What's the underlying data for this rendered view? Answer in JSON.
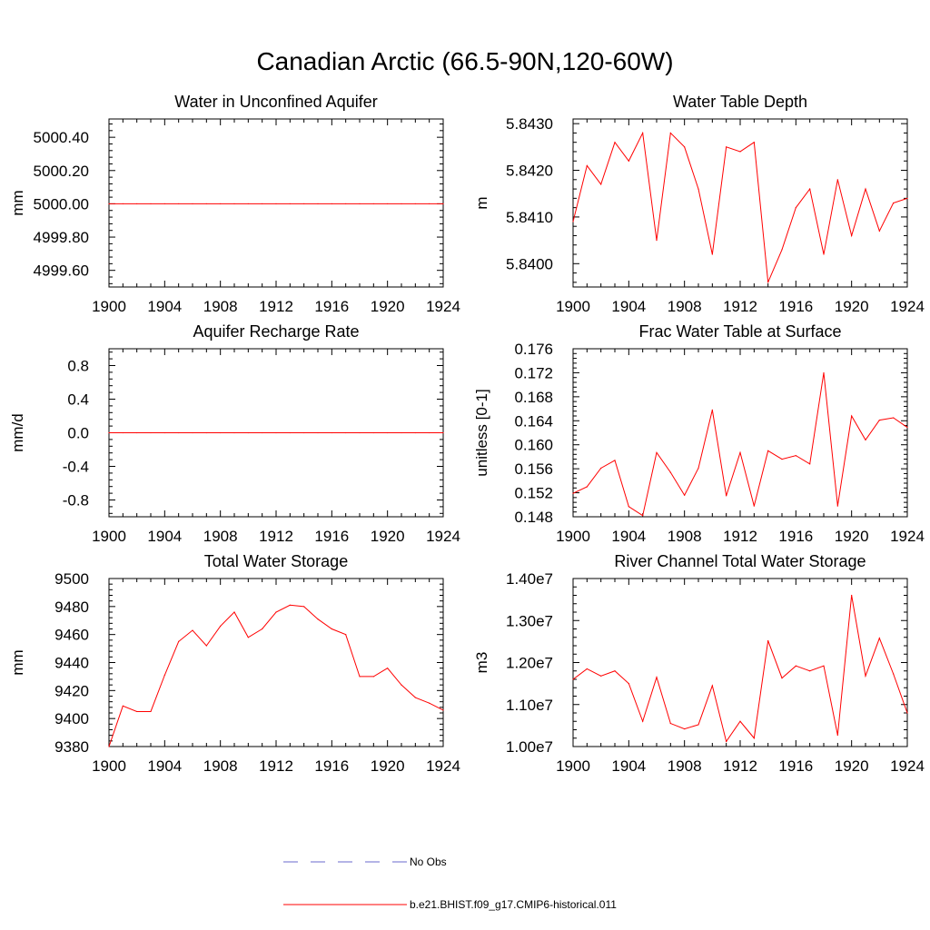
{
  "title": "Canadian Arctic (66.5-90N,120-60W)",
  "legend": {
    "items": [
      {
        "label": "No Obs",
        "color": "#6a6acd",
        "style": "dashed"
      },
      {
        "label": "b.e21.BHIST.f09_g17.CMIP6-historical.011",
        "color": "#ff0000",
        "style": "solid"
      }
    ]
  },
  "chart_data": [
    {
      "type": "line",
      "title": "Water in Unconfined Aquifer",
      "ylabel": "mm",
      "xlim": [
        1900,
        1924
      ],
      "xticks": [
        1900,
        1904,
        1908,
        1912,
        1916,
        1920,
        1924
      ],
      "xtick_labels": [
        "1900",
        "1904",
        "1908",
        "1912",
        "1916",
        "1920",
        "1924"
      ],
      "ylim": [
        4999.5,
        5000.51
      ],
      "yticks": [
        4999.6,
        4999.8,
        5000.0,
        5000.2,
        5000.4
      ],
      "ytick_labels": [
        "4999.60",
        "4999.80",
        "5000.00",
        "5000.20",
        "5000.40"
      ],
      "ydecimals": 2,
      "series": [
        {
          "name": "b.e21.BHIST.f09_g17.CMIP6-historical.011",
          "color": "#ff0000",
          "x": [
            1900,
            1901,
            1902,
            1903,
            1904,
            1905,
            1906,
            1907,
            1908,
            1909,
            1910,
            1911,
            1912,
            1913,
            1914,
            1915,
            1916,
            1917,
            1918,
            1919,
            1920,
            1921,
            1922,
            1923,
            1924
          ],
          "values": [
            5000,
            5000,
            5000,
            5000,
            5000,
            5000,
            5000,
            5000,
            5000,
            5000,
            5000,
            5000,
            5000,
            5000,
            5000,
            5000,
            5000,
            5000,
            5000,
            5000,
            5000,
            5000,
            5000,
            5000,
            5000
          ]
        }
      ]
    },
    {
      "type": "line",
      "title": "Water Table Depth",
      "ylabel": "m",
      "xlim": [
        1900,
        1924
      ],
      "xticks": [
        1900,
        1904,
        1908,
        1912,
        1916,
        1920,
        1924
      ],
      "xtick_labels": [
        "1900",
        "1904",
        "1908",
        "1912",
        "1916",
        "1920",
        "1924"
      ],
      "ylim": [
        5.8395,
        5.8431
      ],
      "yticks": [
        5.84,
        5.841,
        5.842,
        5.843
      ],
      "ytick_labels": [
        "5.8400",
        "5.8410",
        "5.8420",
        "5.8430"
      ],
      "ydecimals": 4,
      "series": [
        {
          "name": "b.e21.BHIST.f09_g17.CMIP6-historical.011",
          "color": "#ff0000",
          "x": [
            1900,
            1901,
            1902,
            1903,
            1904,
            1905,
            1906,
            1907,
            1908,
            1909,
            1910,
            1911,
            1912,
            1913,
            1914,
            1915,
            1916,
            1917,
            1918,
            1919,
            1920,
            1921,
            1922,
            1923,
            1924
          ],
          "values": [
            5.8409,
            5.8421,
            5.8417,
            5.8426,
            5.8422,
            5.8428,
            5.8405,
            5.8428,
            5.8425,
            5.8416,
            5.8402,
            5.8425,
            5.8424,
            5.8426,
            5.8396,
            5.8403,
            5.8412,
            5.8416,
            5.8402,
            5.8418,
            5.8406,
            5.8416,
            5.8407,
            5.8413,
            5.8414
          ]
        }
      ]
    },
    {
      "type": "line",
      "title": "Aquifer Recharge Rate",
      "ylabel": "mm/d",
      "xlim": [
        1900,
        1924
      ],
      "xticks": [
        1900,
        1904,
        1908,
        1912,
        1916,
        1920,
        1924
      ],
      "xtick_labels": [
        "1900",
        "1904",
        "1908",
        "1912",
        "1916",
        "1920",
        "1924"
      ],
      "ylim": [
        -1.0,
        1.0
      ],
      "yticks": [
        -0.8,
        -0.4,
        0.0,
        0.4,
        0.8
      ],
      "ytick_labels": [
        "-0.8",
        "-0.4",
        "0.0",
        "0.4",
        "0.8"
      ],
      "ydecimals": 1,
      "series": [
        {
          "name": "b.e21.BHIST.f09_g17.CMIP6-historical.011",
          "color": "#ff0000",
          "x": [
            1900,
            1901,
            1902,
            1903,
            1904,
            1905,
            1906,
            1907,
            1908,
            1909,
            1910,
            1911,
            1912,
            1913,
            1914,
            1915,
            1916,
            1917,
            1918,
            1919,
            1920,
            1921,
            1922,
            1923,
            1924
          ],
          "values": [
            0,
            0,
            0,
            0,
            0,
            0,
            0,
            0,
            0,
            0,
            0,
            0,
            0,
            0,
            0,
            0,
            0,
            0,
            0,
            0,
            0,
            0,
            0,
            0,
            0
          ]
        }
      ]
    },
    {
      "type": "line",
      "title": "Frac Water Table at Surface",
      "ylabel": "unitless [0-1]",
      "xlim": [
        1900,
        1924
      ],
      "xticks": [
        1900,
        1904,
        1908,
        1912,
        1916,
        1920,
        1924
      ],
      "xtick_labels": [
        "1900",
        "1904",
        "1908",
        "1912",
        "1916",
        "1920",
        "1924"
      ],
      "ylim": [
        0.148,
        0.176
      ],
      "yticks": [
        0.148,
        0.152,
        0.156,
        0.16,
        0.164,
        0.168,
        0.172,
        0.176
      ],
      "ytick_labels": [
        "0.148",
        "0.152",
        "0.156",
        "0.160",
        "0.164",
        "0.168",
        "0.172",
        "0.176"
      ],
      "ydecimals": 3,
      "series": [
        {
          "name": "b.e21.BHIST.f09_g17.CMIP6-historical.011",
          "color": "#ff0000",
          "x": [
            1900,
            1901,
            1902,
            1903,
            1904,
            1905,
            1906,
            1907,
            1908,
            1909,
            1910,
            1911,
            1912,
            1913,
            1914,
            1915,
            1916,
            1917,
            1918,
            1919,
            1920,
            1921,
            1922,
            1923,
            1924
          ],
          "values": [
            0.1519,
            0.153,
            0.1561,
            0.1574,
            0.1497,
            0.1482,
            0.1587,
            0.1554,
            0.1516,
            0.1561,
            0.1658,
            0.1515,
            0.1587,
            0.1498,
            0.159,
            0.1576,
            0.1582,
            0.1568,
            0.172,
            0.1498,
            0.1648,
            0.1608,
            0.1641,
            0.1645,
            0.1629
          ]
        }
      ]
    },
    {
      "type": "line",
      "title": "Total Water Storage",
      "ylabel": "mm",
      "xlim": [
        1900,
        1924
      ],
      "xticks": [
        1900,
        1904,
        1908,
        1912,
        1916,
        1920,
        1924
      ],
      "xtick_labels": [
        "1900",
        "1904",
        "1908",
        "1912",
        "1916",
        "1920",
        "1924"
      ],
      "ylim": [
        9380,
        9500
      ],
      "yticks": [
        9380,
        9400,
        9420,
        9440,
        9460,
        9480,
        9500
      ],
      "ytick_labels": [
        "9380",
        "9400",
        "9420",
        "9440",
        "9460",
        "9480",
        "9500"
      ],
      "ydecimals": 0,
      "series": [
        {
          "name": "b.e21.BHIST.f09_g17.CMIP6-historical.011",
          "color": "#ff0000",
          "x": [
            1900,
            1901,
            1902,
            1903,
            1904,
            1905,
            1906,
            1907,
            1908,
            1909,
            1910,
            1911,
            1912,
            1913,
            1914,
            1915,
            1916,
            1917,
            1918,
            1919,
            1920,
            1921,
            1922,
            1923,
            1924
          ],
          "values": [
            9380,
            9409,
            9405,
            9405,
            9431,
            9455,
            9463,
            9452,
            9466,
            9476,
            9458,
            9464,
            9476,
            9481,
            9480,
            9471,
            9464,
            9460,
            9430,
            9430,
            9436,
            9424,
            9415,
            9411,
            9406
          ]
        }
      ]
    },
    {
      "type": "line",
      "title": "River Channel Total Water Storage",
      "ylabel": "m3",
      "xlim": [
        1900,
        1924
      ],
      "xticks": [
        1900,
        1904,
        1908,
        1912,
        1916,
        1920,
        1924
      ],
      "xtick_labels": [
        "1900",
        "1904",
        "1908",
        "1912",
        "1916",
        "1920",
        "1924"
      ],
      "ylim": [
        10000000,
        14000000
      ],
      "yticks": [
        10000000,
        11000000,
        12000000,
        13000000,
        14000000
      ],
      "ytick_labels": [
        "1.00e7",
        "1.10e7",
        "1.20e7",
        "1.30e7",
        "1.40e7"
      ],
      "ydecimals": 0,
      "series": [
        {
          "name": "b.e21.BHIST.f09_g17.CMIP6-historical.011",
          "color": "#ff0000",
          "x": [
            1900,
            1901,
            1902,
            1903,
            1904,
            1905,
            1906,
            1907,
            1908,
            1909,
            1910,
            1911,
            1912,
            1913,
            1914,
            1915,
            1916,
            1917,
            1918,
            1919,
            1920,
            1921,
            1922,
            1923,
            1924
          ],
          "values": [
            11600000,
            11850000,
            11680000,
            11800000,
            11500000,
            10600000,
            11650000,
            10550000,
            10420000,
            10520000,
            11450000,
            10120000,
            10600000,
            10200000,
            12520000,
            11630000,
            11920000,
            11800000,
            11920000,
            10270000,
            13600000,
            11680000,
            12580000,
            11730000,
            10800000
          ]
        }
      ]
    }
  ]
}
